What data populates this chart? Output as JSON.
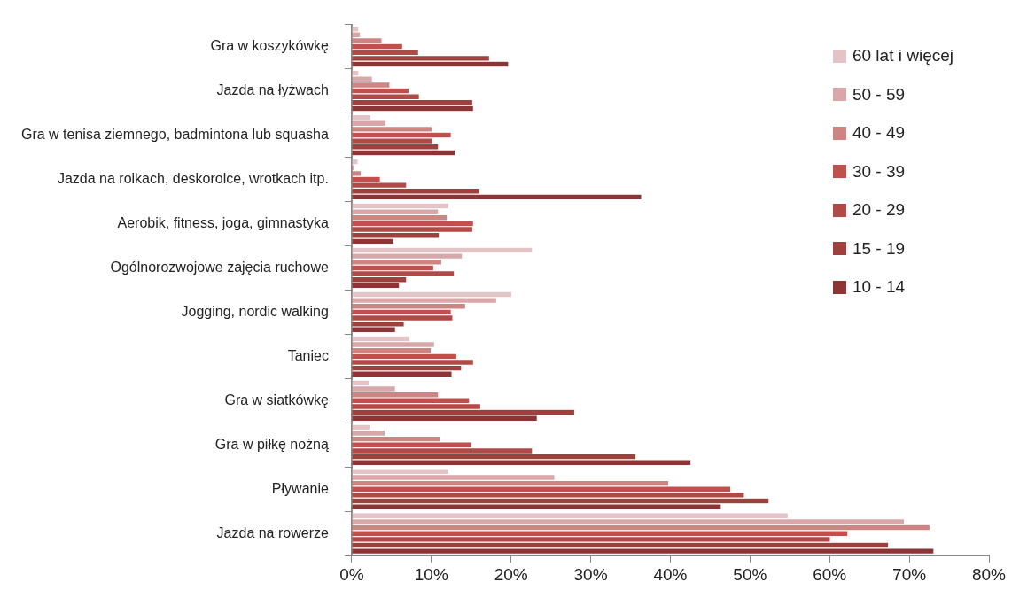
{
  "chart_data": {
    "type": "bar",
    "orientation": "horizontal",
    "categories": [
      "Gra w koszykówkę",
      "Jazda na łyżwach",
      "Gra w tenisa ziemnego, badmintona lub squasha",
      "Jazda na rolkach, deskorolce, wrotkach itp.",
      "Aerobik, fitness, joga, gimnastyka",
      "Ogólnorozwojowe zajęcia ruchowe",
      "Jogging, nordic walking",
      "Taniec",
      "Gra w siatkówkę",
      "Gra w piłkę nożną",
      "Pływanie",
      "Jazda na rowerze"
    ],
    "series": [
      {
        "name": "60 lat i więcej",
        "color": "#e3c4c6",
        "values": [
          0.9,
          0.9,
          2.4,
          0.8,
          12.2,
          22.7,
          20.1,
          7.3,
          2.2,
          2.3,
          12.2,
          54.8
        ]
      },
      {
        "name": "50 - 59",
        "color": "#d9a7a9",
        "values": [
          1.1,
          2.6,
          4.3,
          0.4,
          10.9,
          13.9,
          18.2,
          10.4,
          5.5,
          4.2,
          25.5,
          69.4
        ]
      },
      {
        "name": "40 - 49",
        "color": "#cd8583",
        "values": [
          3.8,
          4.8,
          10.1,
          1.2,
          12.0,
          11.3,
          14.3,
          10.0,
          10.9,
          11.1,
          39.8,
          72.6
        ]
      },
      {
        "name": "30 - 39",
        "color": "#c0504d",
        "values": [
          6.4,
          7.2,
          12.5,
          3.6,
          15.3,
          10.3,
          12.5,
          13.2,
          14.8,
          15.1,
          47.6,
          62.3
        ]
      },
      {
        "name": "20 - 29",
        "color": "#b04a47",
        "values": [
          8.4,
          8.5,
          10.2,
          6.9,
          15.2,
          12.9,
          12.7,
          15.3,
          16.2,
          22.7,
          49.3,
          60.1
        ]
      },
      {
        "name": "15 - 19",
        "color": "#a0403e",
        "values": [
          17.3,
          15.2,
          10.9,
          16.1,
          11.0,
          6.9,
          6.6,
          13.8,
          28.0,
          35.7,
          52.4,
          67.4
        ]
      },
      {
        "name": "10 - 14",
        "color": "#8b3535",
        "values": [
          19.7,
          15.3,
          13.0,
          36.4,
          5.3,
          6.0,
          5.5,
          12.6,
          23.3,
          42.6,
          46.4,
          73.1
        ]
      }
    ],
    "xlim": [
      0,
      80
    ],
    "xticks": [
      {
        "value": 0,
        "label": "0%"
      },
      {
        "value": 10,
        "label": "10%"
      },
      {
        "value": 20,
        "label": "20%"
      },
      {
        "value": 30,
        "label": "30%"
      },
      {
        "value": 40,
        "label": "40%"
      },
      {
        "value": 50,
        "label": "50%"
      },
      {
        "value": 60,
        "label": "60%"
      },
      {
        "value": 70,
        "label": "70%"
      },
      {
        "value": 80,
        "label": "80%"
      }
    ],
    "grid": false,
    "legend": "top right"
  }
}
